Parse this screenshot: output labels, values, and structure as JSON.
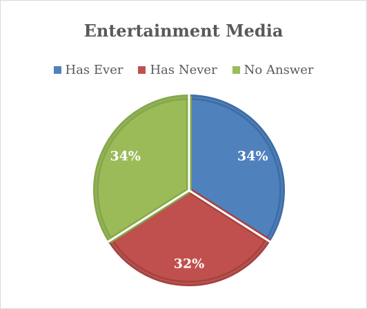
{
  "chart_data": {
    "type": "pie",
    "title": "Entertainment Media",
    "legend_position": "top",
    "categories": [
      "Has Ever",
      "Has Never",
      "No Answer"
    ],
    "values": [
      34,
      32,
      34
    ],
    "labels": [
      "34%",
      "32%",
      "34%"
    ],
    "colors": [
      "#4f81bd",
      "#c0504d",
      "#9bbb59"
    ],
    "edge_colors": [
      "#3d6ea8",
      "#a8423f",
      "#86a84a"
    ]
  }
}
